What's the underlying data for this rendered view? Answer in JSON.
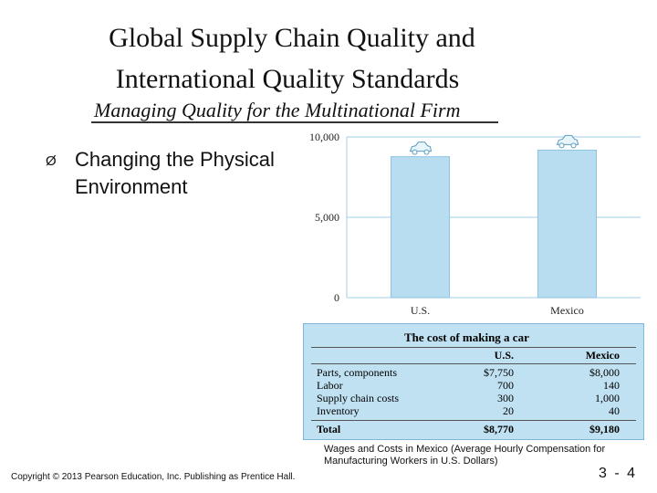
{
  "slide": {
    "title_line1": "Global Supply Chain  Quality and",
    "title_line2": "International Quality Standards",
    "subtitle": "Managing Quality for the Multinational Firm",
    "bullet_marker": "Ø",
    "bullet_text": "Changing the Physical Environment",
    "caption": "Wages and Costs in Mexico (Average Hourly Compensation for Manufacturing Workers in U.S. Dollars)",
    "copyright": "Copyright © 2013 Pearson Education, Inc. Publishing as Prentice Hall.",
    "page_number": "3 - 4"
  },
  "colors": {
    "bar": "#b8ddf0",
    "bar_stroke": "#8cc4e2",
    "grid": "#9fcfe8",
    "table_bg": "#bfe1f2"
  },
  "chart_data": {
    "type": "bar",
    "categories": [
      "U.S.",
      "Mexico"
    ],
    "values": [
      8770,
      9180
    ],
    "ylim": [
      0,
      10000
    ],
    "yticks": [
      0,
      5000,
      10000
    ],
    "ytick_labels": [
      "0",
      "5,000",
      "10,000"
    ],
    "icons": [
      "car-icon",
      "car-icon"
    ],
    "grid": true
  },
  "cost_table": {
    "title": "The cost of making a car",
    "headers": [
      "",
      "U.S.",
      "Mexico"
    ],
    "rows": [
      [
        "Parts, components",
        "$7,750",
        "$8,000"
      ],
      [
        "Labor",
        "700",
        "140"
      ],
      [
        "Supply chain costs",
        "300",
        "1,000"
      ],
      [
        "Inventory",
        "20",
        "40"
      ]
    ],
    "total": [
      "Total",
      "$8,770",
      "$9,180"
    ]
  }
}
